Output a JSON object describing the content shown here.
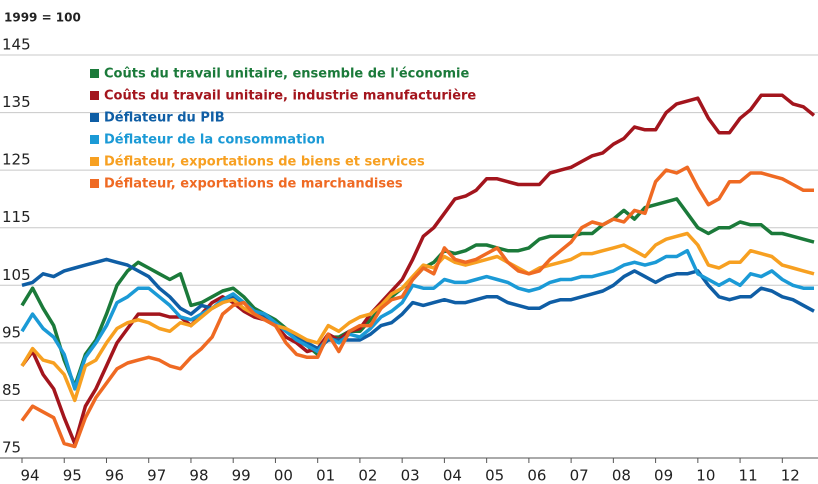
{
  "chart_data": {
    "type": "line",
    "y_label": "1999 = 100",
    "x": [
      1994,
      1994.25,
      1994.5,
      1994.75,
      1995,
      1995.25,
      1995.5,
      1995.75,
      1996,
      1996.25,
      1996.5,
      1996.75,
      1997,
      1997.25,
      1997.5,
      1997.75,
      1998,
      1998.25,
      1998.5,
      1998.75,
      1999,
      1999.25,
      1999.5,
      1999.75,
      2000,
      2000.25,
      2000.5,
      2000.75,
      2001,
      2001.25,
      2001.5,
      2001.75,
      2002,
      2002.25,
      2002.5,
      2002.75,
      2003,
      2003.25,
      2003.5,
      2003.75,
      2004,
      2004.25,
      2004.5,
      2004.75,
      2005,
      2005.25,
      2005.5,
      2005.75,
      2006,
      2006.25,
      2006.5,
      2006.75,
      2007,
      2007.25,
      2007.5,
      2007.75,
      2008,
      2008.25,
      2008.5,
      2008.75,
      2009,
      2009.25,
      2009.5,
      2009.75,
      2010,
      2010.25,
      2010.5,
      2010.75,
      2011,
      2011.25,
      2011.5,
      2011.75,
      2012,
      2012.25,
      2012.5,
      2012.75
    ],
    "series": [
      {
        "name": "Coûts du travail unitaire, ensemble de l'économie",
        "color": "#1b7a3a",
        "values": [
          101.5,
          104.5,
          101,
          98,
          92,
          87.5,
          93,
          95.5,
          100,
          105,
          107.5,
          109,
          108,
          107,
          106,
          107,
          101.5,
          102,
          103,
          104,
          104.5,
          103,
          101,
          100,
          99,
          97.5,
          95.5,
          94.5,
          93,
          96,
          96,
          97,
          97,
          99,
          101,
          103,
          104.5,
          106,
          108,
          109,
          111,
          110.5,
          111,
          112,
          112,
          111.5,
          111,
          111,
          111.5,
          113,
          113.5,
          113.5,
          113.5,
          114,
          114,
          115.5,
          116.5,
          118,
          116.5,
          118.5,
          119,
          119.5,
          120,
          117.5,
          115,
          114,
          115,
          115,
          116,
          115.5,
          115.5,
          114,
          114,
          113.5,
          113,
          112.5
        ]
      },
      {
        "name": "Coûts du travail unitaire, industrie manufacturière",
        "color": "#a3151d",
        "values": [
          91,
          93.5,
          89.5,
          87,
          82,
          77.5,
          84,
          87,
          91,
          95,
          97.5,
          100,
          100,
          100,
          99.5,
          99.5,
          98,
          100,
          102,
          103,
          102,
          100.5,
          99.5,
          99,
          98,
          96,
          95,
          93.5,
          94,
          96.5,
          95.5,
          97,
          97.5,
          100,
          102,
          104,
          106,
          109.5,
          113.5,
          115,
          117.5,
          120,
          120.5,
          121.5,
          123.5,
          123.5,
          123,
          122.5,
          122.5,
          122.5,
          124.5,
          125,
          125.5,
          126.5,
          127.5,
          128,
          129.5,
          130.5,
          132.5,
          132,
          132,
          135,
          136.5,
          137,
          137.5,
          134,
          131.5,
          131.5,
          134,
          135.5,
          138,
          138,
          138,
          136.5,
          136,
          134.5
        ]
      },
      {
        "name": "Déflateur du PIB",
        "color": "#0f5ea5",
        "values": [
          105,
          105.5,
          107,
          106.5,
          107.5,
          108,
          108.5,
          109,
          109.5,
          109,
          108.5,
          107.5,
          106.5,
          104.5,
          103,
          101,
          100,
          101.5,
          101,
          102,
          103,
          102,
          100.5,
          99.5,
          98.5,
          97,
          96,
          95,
          94,
          95.5,
          95.5,
          95.5,
          95.5,
          96.5,
          98,
          98.5,
          100,
          102,
          101.5,
          102,
          102.5,
          102,
          102,
          102.5,
          103,
          103,
          102,
          101.5,
          101,
          101,
          102,
          102.5,
          102.5,
          103,
          103.5,
          104,
          105,
          106.5,
          107.5,
          106.5,
          105.5,
          106.5,
          107,
          107,
          107.5,
          105,
          103,
          102.5,
          103,
          103,
          104.5,
          104,
          103,
          102.5,
          101.5,
          100.5
        ]
      },
      {
        "name": "Déflateur de la consommation",
        "color": "#1b9ad6",
        "values": [
          97,
          100,
          97.5,
          96,
          93,
          87,
          92.5,
          95,
          98,
          102,
          103,
          104.5,
          104.5,
          103,
          101.5,
          99.5,
          99,
          100,
          101,
          102.5,
          103.5,
          102,
          100.5,
          100,
          98.5,
          97,
          95.5,
          94.5,
          93.5,
          96,
          95,
          96.5,
          96,
          97.5,
          99.5,
          100.5,
          102,
          105,
          104.5,
          104.5,
          106,
          105.5,
          105.5,
          106,
          106.5,
          106,
          105.5,
          104.5,
          104,
          104.5,
          105.5,
          106,
          106,
          106.5,
          106.5,
          107,
          107.5,
          108.5,
          109,
          108.5,
          109,
          110,
          110,
          111,
          107,
          106,
          105,
          106,
          105,
          107,
          106.5,
          107.5,
          106,
          105,
          104.5,
          104.5
        ]
      },
      {
        "name": "Déflateur, exportations de biens et services",
        "color": "#f7a021",
        "values": [
          91,
          94,
          92,
          91.5,
          89.5,
          85,
          91,
          92,
          95,
          97.5,
          98.5,
          99,
          98.5,
          97.5,
          97,
          98.5,
          98,
          99.5,
          101,
          102,
          102.5,
          101,
          100,
          99,
          98,
          97.5,
          96.5,
          95.5,
          95,
          98,
          97,
          98.5,
          99.5,
          100,
          101.5,
          103.5,
          104.5,
          106.5,
          108.5,
          108,
          110,
          109,
          108.5,
          109,
          109.5,
          110,
          109,
          108,
          107,
          108,
          108.5,
          109,
          109.5,
          110.5,
          110.5,
          111,
          111.5,
          112,
          111,
          110,
          112,
          113,
          113.5,
          114,
          112,
          108.5,
          108,
          109,
          109,
          111,
          110.5,
          110,
          108.5,
          108,
          107.5,
          107
        ]
      },
      {
        "name": "Déflateur, exportations de marchandises",
        "color": "#ef6a23",
        "values": [
          81.5,
          84,
          83,
          82,
          77.5,
          77,
          82,
          85.5,
          88,
          90.5,
          91.5,
          92,
          92.5,
          92,
          91,
          90.5,
          92.5,
          94,
          96,
          100,
          101.5,
          102,
          100,
          99,
          98,
          95,
          93,
          92.5,
          92.5,
          96.5,
          93.5,
          97,
          98,
          98,
          101,
          102.5,
          103,
          106,
          108,
          107,
          111.5,
          109.5,
          109,
          109.5,
          110.5,
          111.5,
          109,
          107.5,
          107,
          107.5,
          109.5,
          111,
          112.5,
          115,
          116,
          115.5,
          116.5,
          116,
          118,
          117.5,
          123,
          125,
          124.5,
          125.5,
          122,
          119,
          120,
          123,
          123,
          124.5,
          124.5,
          124,
          123.5,
          122.5,
          121.5,
          121.5
        ]
      }
    ],
    "xlim": [
      1994,
      2012.75
    ],
    "xticks": [
      {
        "value": 1994,
        "label": "94"
      },
      {
        "value": 1995,
        "label": "95"
      },
      {
        "value": 1996,
        "label": "96"
      },
      {
        "value": 1997,
        "label": "97"
      },
      {
        "value": 1998,
        "label": "98"
      },
      {
        "value": 1999,
        "label": "99"
      },
      {
        "value": 2000,
        "label": "00"
      },
      {
        "value": 2001,
        "label": "01"
      },
      {
        "value": 2002,
        "label": "02"
      },
      {
        "value": 2003,
        "label": "03"
      },
      {
        "value": 2004,
        "label": "04"
      },
      {
        "value": 2005,
        "label": "05"
      },
      {
        "value": 2006,
        "label": "06"
      },
      {
        "value": 2007,
        "label": "07"
      },
      {
        "value": 2008,
        "label": "08"
      },
      {
        "value": 2009,
        "label": "09"
      },
      {
        "value": 2010,
        "label": "10"
      },
      {
        "value": 2011,
        "label": "11"
      },
      {
        "value": 2012,
        "label": "12"
      }
    ],
    "ylim": [
      75,
      145
    ],
    "yticks": [
      75,
      85,
      95,
      105,
      115,
      125,
      135,
      145
    ],
    "grid": true
  }
}
